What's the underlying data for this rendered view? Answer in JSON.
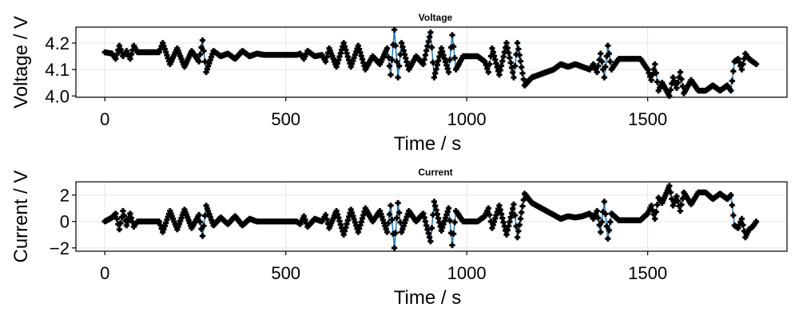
{
  "colors": {
    "line": "#1f77b4",
    "marker": "#000000"
  },
  "chart_data": [
    {
      "type": "scatter",
      "title": "Voltage",
      "xlabel": "Time / s",
      "ylabel": "Voltage / V",
      "xlim": [
        -80,
        1885
      ],
      "ylim": [
        3.995,
        4.26
      ],
      "xticks": [
        0,
        500,
        1000,
        1500
      ],
      "yticks": [
        4.0,
        4.1,
        4.2
      ],
      "ytick_labels": [
        "4.0",
        "4.1",
        "4.2"
      ],
      "marker": "cross",
      "grid": true,
      "keypoints": [
        [
          0,
          4.165
        ],
        [
          20,
          4.16
        ],
        [
          30,
          4.14
        ],
        [
          40,
          4.19
        ],
        [
          50,
          4.15
        ],
        [
          60,
          4.17
        ],
        [
          70,
          4.14
        ],
        [
          80,
          4.19
        ],
        [
          90,
          4.165
        ],
        [
          150,
          4.165
        ],
        [
          160,
          4.2
        ],
        [
          180,
          4.12
        ],
        [
          200,
          4.18
        ],
        [
          220,
          4.11
        ],
        [
          240,
          4.17
        ],
        [
          260,
          4.13
        ],
        [
          270,
          4.21
        ],
        [
          280,
          4.09
        ],
        [
          300,
          4.17
        ],
        [
          320,
          4.15
        ],
        [
          340,
          4.16
        ],
        [
          360,
          4.14
        ],
        [
          380,
          4.17
        ],
        [
          400,
          4.15
        ],
        [
          420,
          4.16
        ],
        [
          440,
          4.155
        ],
        [
          530,
          4.155
        ],
        [
          540,
          4.16
        ],
        [
          550,
          4.14
        ],
        [
          560,
          4.17
        ],
        [
          580,
          4.15
        ],
        [
          600,
          4.155
        ],
        [
          610,
          4.13
        ],
        [
          620,
          4.18
        ],
        [
          640,
          4.11
        ],
        [
          660,
          4.2
        ],
        [
          680,
          4.11
        ],
        [
          700,
          4.19
        ],
        [
          720,
          4.1
        ],
        [
          740,
          4.15
        ],
        [
          760,
          4.12
        ],
        [
          780,
          4.18
        ],
        [
          790,
          4.08
        ],
        [
          800,
          4.25
        ],
        [
          810,
          4.07
        ],
        [
          820,
          4.2
        ],
        [
          840,
          4.1
        ],
        [
          860,
          4.15
        ],
        [
          880,
          4.12
        ],
        [
          900,
          4.24
        ],
        [
          910,
          4.07
        ],
        [
          930,
          4.18
        ],
        [
          950,
          4.09
        ],
        [
          960,
          4.23
        ],
        [
          970,
          4.1
        ],
        [
          990,
          4.15
        ],
        [
          1030,
          4.15
        ],
        [
          1050,
          4.13
        ],
        [
          1060,
          4.09
        ],
        [
          1070,
          4.18
        ],
        [
          1090,
          4.08
        ],
        [
          1110,
          4.2
        ],
        [
          1130,
          4.07
        ],
        [
          1140,
          4.2
        ],
        [
          1160,
          4.04
        ],
        [
          1180,
          4.07
        ],
        [
          1200,
          4.08
        ],
        [
          1220,
          4.09
        ],
        [
          1240,
          4.1
        ],
        [
          1260,
          4.12
        ],
        [
          1280,
          4.11
        ],
        [
          1300,
          4.12
        ],
        [
          1320,
          4.11
        ],
        [
          1340,
          4.1
        ],
        [
          1350,
          4.12
        ],
        [
          1360,
          4.09
        ],
        [
          1370,
          4.16
        ],
        [
          1380,
          4.07
        ],
        [
          1390,
          4.19
        ],
        [
          1400,
          4.1
        ],
        [
          1420,
          4.14
        ],
        [
          1440,
          4.14
        ],
        [
          1460,
          4.14
        ],
        [
          1480,
          4.14
        ],
        [
          1500,
          4.1
        ],
        [
          1510,
          4.06
        ],
        [
          1520,
          4.12
        ],
        [
          1530,
          4.02
        ],
        [
          1540,
          4.05
        ],
        [
          1560,
          4.0
        ],
        [
          1570,
          4.07
        ],
        [
          1580,
          4.03
        ],
        [
          1590,
          4.09
        ],
        [
          1600,
          4.01
        ],
        [
          1620,
          4.06
        ],
        [
          1640,
          4.02
        ],
        [
          1660,
          4.02
        ],
        [
          1680,
          4.04
        ],
        [
          1700,
          4.02
        ],
        [
          1720,
          4.04
        ],
        [
          1730,
          4.02
        ],
        [
          1740,
          4.13
        ],
        [
          1750,
          4.14
        ],
        [
          1760,
          4.1
        ],
        [
          1770,
          4.16
        ],
        [
          1780,
          4.14
        ],
        [
          1790,
          4.13
        ],
        [
          1800,
          4.12
        ]
      ]
    },
    {
      "type": "scatter",
      "title": "Current",
      "xlabel": "Time / s",
      "ylabel": "Current / V",
      "xlim": [
        -80,
        1885
      ],
      "ylim": [
        -2.25,
        3.0
      ],
      "xticks": [
        0,
        500,
        1000,
        1500
      ],
      "yticks": [
        -2,
        0,
        2
      ],
      "ytick_labels": [
        "−2",
        "0",
        "2"
      ],
      "marker": "cross",
      "grid": true,
      "keypoints": [
        [
          0,
          0.0
        ],
        [
          20,
          0.3
        ],
        [
          30,
          0.6
        ],
        [
          40,
          -0.6
        ],
        [
          50,
          0.8
        ],
        [
          60,
          -0.3
        ],
        [
          70,
          0.6
        ],
        [
          80,
          -0.4
        ],
        [
          90,
          0.0
        ],
        [
          150,
          0.0
        ],
        [
          160,
          -0.8
        ],
        [
          180,
          0.8
        ],
        [
          200,
          -0.6
        ],
        [
          220,
          0.9
        ],
        [
          240,
          -0.5
        ],
        [
          260,
          0.5
        ],
        [
          270,
          -1.1
        ],
        [
          280,
          1.2
        ],
        [
          300,
          -0.3
        ],
        [
          320,
          0.3
        ],
        [
          340,
          -0.2
        ],
        [
          360,
          0.4
        ],
        [
          380,
          -0.3
        ],
        [
          400,
          0.2
        ],
        [
          420,
          0.0
        ],
        [
          440,
          0.0
        ],
        [
          530,
          0.0
        ],
        [
          540,
          -0.2
        ],
        [
          550,
          0.4
        ],
        [
          560,
          -0.4
        ],
        [
          580,
          0.2
        ],
        [
          600,
          0.0
        ],
        [
          610,
          0.5
        ],
        [
          620,
          -0.5
        ],
        [
          640,
          0.8
        ],
        [
          660,
          -1.0
        ],
        [
          680,
          0.9
        ],
        [
          700,
          -0.8
        ],
        [
          720,
          1.0
        ],
        [
          740,
          0.0
        ],
        [
          760,
          0.8
        ],
        [
          780,
          -0.8
        ],
        [
          790,
          1.2
        ],
        [
          800,
          -2.0
        ],
        [
          810,
          1.4
        ],
        [
          820,
          -0.8
        ],
        [
          840,
          0.8
        ],
        [
          860,
          0.0
        ],
        [
          880,
          0.6
        ],
        [
          900,
          -1.5
        ],
        [
          910,
          1.5
        ],
        [
          930,
          -0.7
        ],
        [
          950,
          1.0
        ],
        [
          960,
          -1.8
        ],
        [
          970,
          0.8
        ],
        [
          990,
          0.0
        ],
        [
          1030,
          0.0
        ],
        [
          1050,
          0.4
        ],
        [
          1060,
          1.0
        ],
        [
          1070,
          -0.5
        ],
        [
          1090,
          1.2
        ],
        [
          1110,
          -1.0
        ],
        [
          1130,
          1.3
        ],
        [
          1140,
          -1.2
        ],
        [
          1160,
          2.1
        ],
        [
          1180,
          1.4
        ],
        [
          1200,
          1.1
        ],
        [
          1220,
          0.8
        ],
        [
          1240,
          0.5
        ],
        [
          1260,
          0.2
        ],
        [
          1280,
          0.4
        ],
        [
          1300,
          0.3
        ],
        [
          1320,
          0.4
        ],
        [
          1340,
          0.6
        ],
        [
          1350,
          0.2
        ],
        [
          1360,
          0.8
        ],
        [
          1370,
          -0.8
        ],
        [
          1380,
          1.5
        ],
        [
          1390,
          -1.3
        ],
        [
          1400,
          0.6
        ],
        [
          1420,
          0.1
        ],
        [
          1440,
          0.1
        ],
        [
          1460,
          0.1
        ],
        [
          1480,
          0.1
        ],
        [
          1500,
          0.6
        ],
        [
          1510,
          1.2
        ],
        [
          1520,
          0.2
        ],
        [
          1530,
          1.8
        ],
        [
          1540,
          1.4
        ],
        [
          1560,
          2.7
        ],
        [
          1570,
          1.2
        ],
        [
          1580,
          1.9
        ],
        [
          1590,
          0.8
        ],
        [
          1600,
          2.2
        ],
        [
          1620,
          1.3
        ],
        [
          1640,
          2.2
        ],
        [
          1660,
          2.2
        ],
        [
          1680,
          1.7
        ],
        [
          1700,
          2.1
        ],
        [
          1720,
          1.7
        ],
        [
          1730,
          2.0
        ],
        [
          1740,
          -0.3
        ],
        [
          1750,
          -0.5
        ],
        [
          1760,
          0.2
        ],
        [
          1770,
          -1.2
        ],
        [
          1780,
          -0.6
        ],
        [
          1790,
          -0.4
        ],
        [
          1800,
          0.0
        ]
      ]
    }
  ]
}
